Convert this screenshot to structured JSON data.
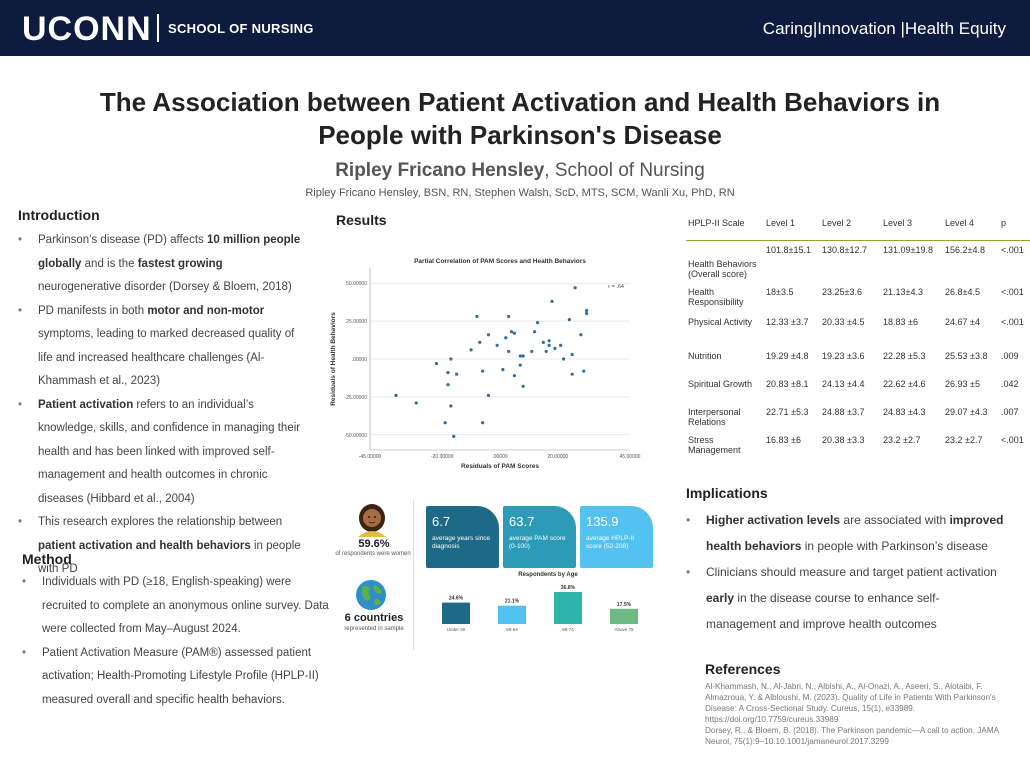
{
  "header": {
    "logo": "UCONN",
    "school": "SCHOOL OF NURSING",
    "tagline": "Caring|Innovation |Health Equity"
  },
  "title_line1": "The Association between Patient Activation and Health Behaviors in",
  "title_line2": "People with Parkinson's Disease",
  "presenter": {
    "name": "Ripley Fricano Hensley",
    "affiliation": ", School of Nursing"
  },
  "authors": "Ripley Fricano Hensley, BSN, RN, Stephen Walsh, ScD, MTS, SCM, Wanli Xu, PhD, RN",
  "introduction": {
    "heading": "Introduction",
    "b1": {
      "t1": "Parkinson’s disease (PD) affects ",
      "b1": "10 million people globally",
      "t2": " and is the ",
      "b2": "fastest growing",
      "t3": " neurogenerative disorder (Dorsey & Bloem, 2018)"
    },
    "b2": {
      "t1": "PD manifests in both ",
      "b1": "motor and non-motor",
      "t2": " symptoms, leading to marked decreased quality of life and increased healthcare challenges (Al-Khammash et al., 2023)"
    },
    "b3": {
      "b1": "Patient activation",
      "t1": " refers to an individual’s knowledge, skills, and confidence in managing their health and has been linked with improved self-management and health outcomes in chronic diseases (Hibbard et al., 2004)"
    },
    "b4": {
      "t1": "This research explores the relationship between ",
      "b1": "patient activation and health behaviors",
      "t2": " in people with PD"
    }
  },
  "method": {
    "heading": "Method",
    "b1": "Individuals with PD (≥18, English-speaking) were recruited to complete an anonymous online survey. Data were collected from May–August 2024.",
    "b2": "Patient Activation Measure (PAM®) assessed patient activation; Health-Promoting Lifestyle Profile (HPLP-II) measured overall and specific health behaviors."
  },
  "results": {
    "heading": "Results",
    "women_pct": "59.6%",
    "women_label": "of respondents were women",
    "countries": "6 countries",
    "countries_label": "represented in sample",
    "cards": [
      {
        "value": "6.7",
        "label": "average years since diagnosis",
        "color": "#1e6a86"
      },
      {
        "value": "63.7",
        "label": "average PAM score (0-100)",
        "color": "#2b9bb8"
      },
      {
        "value": "135.9",
        "label": "average HPLP-II score (52-208)",
        "color": "#53c2f0"
      }
    ]
  },
  "chart_data": [
    {
      "type": "scatter",
      "title": "Partial Correlation of PAM Scores and Health Behaviors",
      "xlabel": "Residuals of PAM Scores",
      "ylabel": "Residuals of Health Behaviors",
      "annotation": "r = .64",
      "xlim": [
        -45,
        45
      ],
      "ylim": [
        -60,
        60
      ],
      "xticks": [
        "-45.00000",
        "-20.00000",
        ".00000",
        "20.00000",
        "45.00000"
      ],
      "yticks": [
        "50.00000",
        "25.00000",
        ".00000",
        "-25.00000",
        "-50.00000"
      ],
      "points": [
        [
          -36,
          -24
        ],
        [
          -29,
          -29
        ],
        [
          -22,
          -3
        ],
        [
          -19,
          -42
        ],
        [
          -18,
          -9
        ],
        [
          -18,
          -17
        ],
        [
          -17,
          -31
        ],
        [
          -17,
          0
        ],
        [
          -16,
          -51
        ],
        [
          -15,
          -10
        ],
        [
          -10,
          6
        ],
        [
          -8,
          28
        ],
        [
          -7,
          11
        ],
        [
          -6,
          -42
        ],
        [
          -6,
          -8
        ],
        [
          -4,
          -24
        ],
        [
          -4,
          16
        ],
        [
          -1,
          9
        ],
        [
          1,
          -7
        ],
        [
          2,
          14
        ],
        [
          3,
          5
        ],
        [
          3,
          28
        ],
        [
          4,
          18
        ],
        [
          5,
          17
        ],
        [
          5,
          -11
        ],
        [
          7,
          -4
        ],
        [
          7,
          2
        ],
        [
          8,
          2
        ],
        [
          8,
          -18
        ],
        [
          11,
          5
        ],
        [
          12,
          18
        ],
        [
          13,
          24
        ],
        [
          15,
          11
        ],
        [
          16,
          5
        ],
        [
          17,
          9
        ],
        [
          17,
          12
        ],
        [
          18,
          38
        ],
        [
          19,
          7
        ],
        [
          21,
          9
        ],
        [
          22,
          0
        ],
        [
          24,
          26
        ],
        [
          25,
          3
        ],
        [
          25,
          -10
        ],
        [
          26,
          47
        ],
        [
          28,
          16
        ],
        [
          29,
          -8
        ],
        [
          30,
          32
        ],
        [
          30,
          30
        ]
      ]
    },
    {
      "type": "bar",
      "title": "Respondents by Age",
      "categories": [
        "Under 60",
        "60-64",
        "65-74",
        "Above 75"
      ],
      "values": [
        24.6,
        21.1,
        36.8,
        17.5
      ],
      "labels": [
        "24.6%",
        "21.1%",
        "36.8%",
        "17.5%"
      ],
      "colors": [
        "#1e6a86",
        "#53c2f0",
        "#2db3aa",
        "#6fba83"
      ]
    }
  ],
  "table": {
    "headers": [
      "HPLP-II Scale",
      "Level 1",
      "Level 2",
      "Level 3",
      "Level 4",
      "p"
    ],
    "rows": [
      {
        "label": "Health Behaviors (Overall score)",
        "cells": [
          "101.8±15.1",
          "130.8±12.7",
          "131.09±19.8",
          "156.2±4.8",
          "<.001"
        ]
      },
      {
        "label": "Health Responsibility",
        "cells": [
          "18±3.5",
          "23.25±3.6",
          "21.13±4.3",
          "26.8±4.5",
          "<.001"
        ]
      },
      {
        "label": "Physical Activity",
        "cells": [
          "12.33 ±3.7",
          "20.33 ±4.5",
          "18.83 ±6",
          "24.67 ±4",
          "<.001"
        ]
      },
      {
        "label": "Nutrition",
        "cells": [
          "19.29 ±4.8",
          "19.23 ±3.6",
          "22.28 ±5.3",
          "25.53 ±3.8",
          ".009"
        ]
      },
      {
        "label": "Spiritual Growth",
        "cells": [
          "20.83 ±8.1",
          "24.13 ±4.4",
          "22.62 ±4.6",
          "26.93 ±5",
          ".042"
        ]
      },
      {
        "label": "Interpersonal Relations",
        "cells": [
          "22.71 ±5.3",
          "24.88 ±3.7",
          "24.83 ±4.3",
          "29.07 ±4.3",
          ".007"
        ]
      },
      {
        "label": "Stress Management",
        "cells": [
          "16.83 ±6",
          "20.38 ±3.3",
          "23.2 ±2.7",
          "23.2 ±2.7",
          "<.001"
        ]
      }
    ]
  },
  "implications": {
    "heading": "Implications",
    "b1": {
      "b1": "Higher activation levels",
      "t1": " are associated with ",
      "b2": "improved health behaviors",
      "t2": " in people with Parkinson’s disease"
    },
    "b2": {
      "t1": "Clinicians should measure and target patient activation ",
      "b1": "early",
      "t2": " in the disease course to enhance self-management and improve health outcomes"
    }
  },
  "references": {
    "heading": "References",
    "r1": "Al-Khammash, N., Al-Jabri, N., Albishi, A., Al-Onazi, A., Aseeri, S., Alotaibi, F. Almazroua, Y. & Albloushi, M. (2023). Quality of Life in Patients With Parkinson's Disease: A Cross-Sectional Study. Cureus, 15(1), e33989. https://doi.org/10.7759/cureus.33989",
    "r2": "Dorsey, R., & Bloem, B. (2018). The Parkinson pandemic—A call to action. JAMA Neurol, 75(1):9–10.10.1001/jamaneurol.2017.3299"
  }
}
